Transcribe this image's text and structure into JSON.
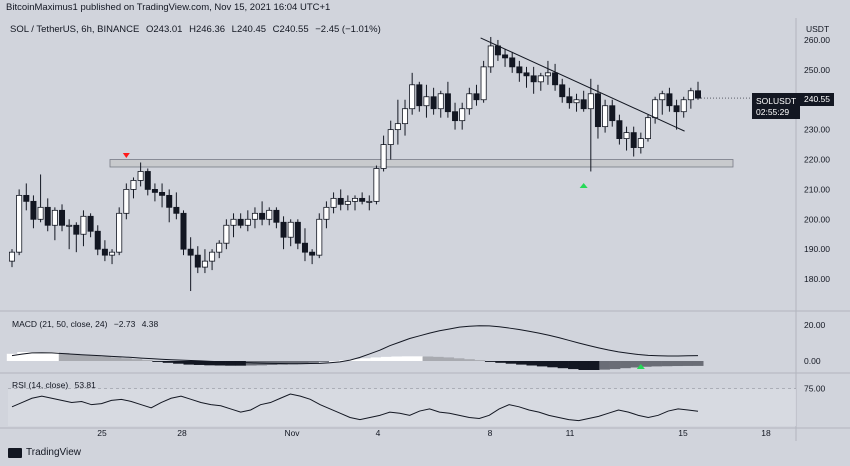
{
  "header": {
    "published_by": "BitcoinMaximus1 published on TradingView.com, Nov 15, 2021 16:04 UTC+1"
  },
  "symbol_bar": {
    "name": "SOL / TetherUS, 6h, BINANCE",
    "open": "243.01",
    "high": "246.36",
    "low": "240.45",
    "close": "240.55",
    "change": "−2.45 (−1.01%)"
  },
  "price_axis": {
    "currency": "USDT",
    "ticks": [
      "260.00",
      "250.00",
      "240.00",
      "230.00",
      "220.00",
      "210.00",
      "200.00",
      "190.00",
      "180.00"
    ]
  },
  "price_tag": {
    "symbol": "SOLUSDT",
    "last": "240.55",
    "countdown": "02:55:29"
  },
  "macd": {
    "label": "MACD (21, 50, close, 24)",
    "value1": "−2.73",
    "value2": "4.38",
    "ticks": [
      "20.00",
      "0.00"
    ]
  },
  "rsi": {
    "label": "RSI (14, close)",
    "value": "53.81",
    "ticks": [
      "75.00"
    ]
  },
  "time_axis": {
    "ticks": [
      "25",
      "28",
      "Nov",
      "4",
      "8",
      "11",
      "15",
      "18"
    ]
  },
  "footer": {
    "brand": "TradingView"
  },
  "colors": {
    "background": "#d1d4dc",
    "candle": "#131722",
    "resistance_zone": "#c8cacd",
    "arrow_green": "#26d957",
    "arrow_red": "#ff1a1a",
    "macd_hist_pos": "#ffffff",
    "macd_hist_neg": "#131722"
  },
  "chart_data": [
    {
      "type": "candlestick",
      "title": "",
      "ylim": [
        173,
        264
      ],
      "x_range": [
        "Oct 21",
        "Nov 18"
      ],
      "horizontal_zone": [
        217.5,
        220
      ],
      "descending_trendline": [
        [
          260,
          "Nov 7"
        ],
        [
          229.5,
          "Nov 15"
        ]
      ],
      "markers": [
        {
          "type": "down-arrow",
          "color": "red",
          "date": "Oct 25"
        },
        {
          "type": "up-arrow",
          "color": "green",
          "date": "Nov 11"
        }
      ],
      "candles": [
        {
          "o": 186,
          "h": 190,
          "l": 184,
          "c": 189
        },
        {
          "o": 189,
          "h": 210,
          "l": 188,
          "c": 208
        },
        {
          "o": 208,
          "h": 212,
          "l": 203,
          "c": 206
        },
        {
          "o": 206,
          "h": 208,
          "l": 197,
          "c": 200
        },
        {
          "o": 200,
          "h": 215,
          "l": 199,
          "c": 204
        },
        {
          "o": 204,
          "h": 207,
          "l": 196,
          "c": 198
        },
        {
          "o": 198,
          "h": 204,
          "l": 193,
          "c": 203
        },
        {
          "o": 203,
          "h": 205,
          "l": 196,
          "c": 198
        },
        {
          "o": 198,
          "h": 200,
          "l": 190,
          "c": 198
        },
        {
          "o": 198,
          "h": 199,
          "l": 189,
          "c": 195
        },
        {
          "o": 195,
          "h": 203,
          "l": 191,
          "c": 201
        },
        {
          "o": 201,
          "h": 202,
          "l": 194,
          "c": 196
        },
        {
          "o": 196,
          "h": 198,
          "l": 188,
          "c": 190
        },
        {
          "o": 190,
          "h": 193,
          "l": 186,
          "c": 188
        },
        {
          "o": 188,
          "h": 190,
          "l": 185,
          "c": 189
        },
        {
          "o": 189,
          "h": 204,
          "l": 188,
          "c": 202
        },
        {
          "o": 202,
          "h": 212,
          "l": 200,
          "c": 210
        },
        {
          "o": 210,
          "h": 214,
          "l": 207,
          "c": 213
        },
        {
          "o": 213,
          "h": 219,
          "l": 211,
          "c": 216
        },
        {
          "o": 216,
          "h": 217,
          "l": 208,
          "c": 210
        },
        {
          "o": 210,
          "h": 212,
          "l": 206,
          "c": 209
        },
        {
          "o": 209,
          "h": 212,
          "l": 204,
          "c": 208
        },
        {
          "o": 208,
          "h": 210,
          "l": 199,
          "c": 204
        },
        {
          "o": 204,
          "h": 209,
          "l": 200,
          "c": 202
        },
        {
          "o": 202,
          "h": 203,
          "l": 188,
          "c": 190
        },
        {
          "o": 190,
          "h": 194,
          "l": 176,
          "c": 188
        },
        {
          "o": 188,
          "h": 191,
          "l": 182,
          "c": 184
        },
        {
          "o": 184,
          "h": 190,
          "l": 182,
          "c": 186
        },
        {
          "o": 186,
          "h": 190,
          "l": 183,
          "c": 189
        },
        {
          "o": 189,
          "h": 193,
          "l": 187,
          "c": 192
        },
        {
          "o": 192,
          "h": 200,
          "l": 190,
          "c": 198
        },
        {
          "o": 198,
          "h": 202,
          "l": 194,
          "c": 200
        },
        {
          "o": 200,
          "h": 202,
          "l": 197,
          "c": 198
        },
        {
          "o": 198,
          "h": 203,
          "l": 196,
          "c": 200
        },
        {
          "o": 200,
          "h": 204,
          "l": 197,
          "c": 202
        },
        {
          "o": 202,
          "h": 206,
          "l": 198,
          "c": 200
        },
        {
          "o": 200,
          "h": 204,
          "l": 198,
          "c": 203
        },
        {
          "o": 203,
          "h": 204,
          "l": 197,
          "c": 199
        },
        {
          "o": 199,
          "h": 201,
          "l": 190,
          "c": 194
        },
        {
          "o": 194,
          "h": 200,
          "l": 191,
          "c": 199
        },
        {
          "o": 199,
          "h": 200,
          "l": 190,
          "c": 192
        },
        {
          "o": 192,
          "h": 197,
          "l": 186,
          "c": 189
        },
        {
          "o": 189,
          "h": 190,
          "l": 185,
          "c": 188
        },
        {
          "o": 188,
          "h": 202,
          "l": 187,
          "c": 200
        },
        {
          "o": 200,
          "h": 206,
          "l": 197,
          "c": 204
        },
        {
          "o": 204,
          "h": 209,
          "l": 202,
          "c": 207
        },
        {
          "o": 207,
          "h": 210,
          "l": 203,
          "c": 205
        },
        {
          "o": 205,
          "h": 208,
          "l": 203,
          "c": 206
        },
        {
          "o": 206,
          "h": 208,
          "l": 203,
          "c": 207
        },
        {
          "o": 207,
          "h": 209,
          "l": 205,
          "c": 206
        },
        {
          "o": 206,
          "h": 208,
          "l": 203,
          "c": 206
        },
        {
          "o": 206,
          "h": 218,
          "l": 205,
          "c": 217
        },
        {
          "o": 217,
          "h": 228,
          "l": 216,
          "c": 225
        },
        {
          "o": 225,
          "h": 233,
          "l": 220,
          "c": 230
        },
        {
          "o": 230,
          "h": 240,
          "l": 225,
          "c": 232
        },
        {
          "o": 232,
          "h": 240,
          "l": 228,
          "c": 237
        },
        {
          "o": 237,
          "h": 249,
          "l": 235,
          "c": 245
        },
        {
          "o": 245,
          "h": 246,
          "l": 236,
          "c": 238
        },
        {
          "o": 238,
          "h": 245,
          "l": 234,
          "c": 241
        },
        {
          "o": 241,
          "h": 244,
          "l": 235,
          "c": 237
        },
        {
          "o": 237,
          "h": 243,
          "l": 234,
          "c": 242
        },
        {
          "o": 242,
          "h": 246,
          "l": 234,
          "c": 236
        },
        {
          "o": 236,
          "h": 239,
          "l": 230,
          "c": 233
        },
        {
          "o": 233,
          "h": 239,
          "l": 230,
          "c": 237
        },
        {
          "o": 237,
          "h": 244,
          "l": 235,
          "c": 242
        },
        {
          "o": 242,
          "h": 245,
          "l": 238,
          "c": 240
        },
        {
          "o": 240,
          "h": 253,
          "l": 239,
          "c": 251
        },
        {
          "o": 251,
          "h": 261,
          "l": 249,
          "c": 258
        },
        {
          "o": 258,
          "h": 260,
          "l": 253,
          "c": 255
        },
        {
          "o": 255,
          "h": 257,
          "l": 251,
          "c": 254
        },
        {
          "o": 254,
          "h": 256,
          "l": 249,
          "c": 251
        },
        {
          "o": 251,
          "h": 253,
          "l": 246,
          "c": 249
        },
        {
          "o": 249,
          "h": 251,
          "l": 244,
          "c": 248
        },
        {
          "o": 248,
          "h": 251,
          "l": 242,
          "c": 246
        },
        {
          "o": 246,
          "h": 249,
          "l": 243,
          "c": 248
        },
        {
          "o": 248,
          "h": 253,
          "l": 245,
          "c": 249
        },
        {
          "o": 249,
          "h": 252,
          "l": 243,
          "c": 245
        },
        {
          "o": 245,
          "h": 247,
          "l": 239,
          "c": 241
        },
        {
          "o": 241,
          "h": 244,
          "l": 237,
          "c": 239
        },
        {
          "o": 239,
          "h": 242,
          "l": 236,
          "c": 240
        },
        {
          "o": 240,
          "h": 243,
          "l": 236,
          "c": 237
        },
        {
          "o": 237,
          "h": 247,
          "l": 216,
          "c": 242
        },
        {
          "o": 242,
          "h": 245,
          "l": 227,
          "c": 231
        },
        {
          "o": 231,
          "h": 240,
          "l": 229,
          "c": 238
        },
        {
          "o": 238,
          "h": 240,
          "l": 231,
          "c": 233
        },
        {
          "o": 233,
          "h": 235,
          "l": 225,
          "c": 227
        },
        {
          "o": 227,
          "h": 231,
          "l": 223,
          "c": 229
        },
        {
          "o": 229,
          "h": 231,
          "l": 221,
          "c": 224
        },
        {
          "o": 224,
          "h": 229,
          "l": 222,
          "c": 227
        },
        {
          "o": 227,
          "h": 235,
          "l": 226,
          "c": 234
        },
        {
          "o": 234,
          "h": 241,
          "l": 232,
          "c": 240
        },
        {
          "o": 240,
          "h": 243,
          "l": 235,
          "c": 242
        },
        {
          "o": 242,
          "h": 244,
          "l": 236,
          "c": 238
        },
        {
          "o": 238,
          "h": 240,
          "l": 230,
          "c": 236
        },
        {
          "o": 236,
          "h": 241,
          "l": 234,
          "c": 240
        },
        {
          "o": 240,
          "h": 244,
          "l": 237,
          "c": 243
        },
        {
          "o": 243,
          "h": 246,
          "l": 240,
          "c": 240.55
        }
      ]
    },
    {
      "type": "macd",
      "title": "MACD (21, 50, close, 24)",
      "ylim": [
        -5,
        25
      ],
      "line": [
        3,
        3.8,
        4.5,
        4.6,
        4.5,
        4.2,
        3.8,
        3.5,
        3.2,
        2.9,
        2.6,
        2.3,
        2.0,
        1.6,
        1.3,
        1.0,
        0.7,
        0.5,
        0.3,
        0.1,
        -0.2,
        -0.4,
        -0.6,
        -0.8,
        -1.0,
        -1.2,
        -1.3,
        -1.4,
        -1.5,
        -1.5,
        -1.4,
        -1.3,
        -1.0,
        -0.5,
        0.5,
        2,
        4,
        6,
        8.5,
        10.5,
        12.5,
        14,
        15.5,
        16.8,
        17.8,
        18.8,
        19.3,
        19.6,
        19.5,
        19,
        18.3,
        17.5,
        16.5,
        15.5,
        14.3,
        13,
        11.5,
        10,
        8.6,
        7.3,
        6.1,
        5.1,
        4.3,
        3.6,
        3.1,
        2.9,
        2.8,
        2.8,
        2.9,
        3.0
      ],
      "histogram": [
        4,
        5,
        5,
        5,
        5,
        4.5,
        4,
        3.5,
        3,
        2.5,
        2,
        1.5,
        1,
        0.5,
        -0.5,
        -1,
        -1.5,
        -2,
        -2.2,
        -2.4,
        -2.5,
        -2.6,
        -2.6,
        -2.5,
        -2.4,
        -2.2,
        -2,
        -1.8,
        -1.5,
        -1,
        -0.5,
        0,
        0.5,
        1,
        1.5,
        2,
        2.3,
        2.5,
        2.6,
        2.6,
        2.5,
        2.3,
        2,
        1.5,
        1,
        0.5,
        -0.5,
        -1,
        -1.5,
        -2,
        -2.5,
        -3,
        -3.5,
        -4,
        -4.5,
        -5,
        -5,
        -4.8,
        -4.5,
        -4,
        -3.6,
        -3.2,
        -3.0,
        -2.9,
        -2.8,
        -2.75,
        -2.73
      ]
    },
    {
      "type": "line",
      "title": "RSI (14, close)",
      "ylim": [
        40,
        85
      ],
      "values": [
        58,
        62,
        66,
        68,
        66,
        64,
        62,
        63,
        60,
        61,
        64,
        65,
        63,
        60,
        57,
        62,
        66,
        68,
        65,
        62,
        60,
        59,
        56,
        53,
        55,
        60,
        62,
        66,
        70,
        68,
        65,
        60,
        56,
        52,
        48,
        46,
        48,
        50,
        53,
        52,
        50,
        54,
        56,
        53,
        52,
        50,
        48,
        47,
        50,
        56,
        60,
        58,
        55,
        53,
        50,
        48,
        46,
        45,
        47,
        49,
        52,
        55,
        53,
        50,
        48,
        50,
        54,
        56,
        55,
        53.81
      ]
    }
  ]
}
